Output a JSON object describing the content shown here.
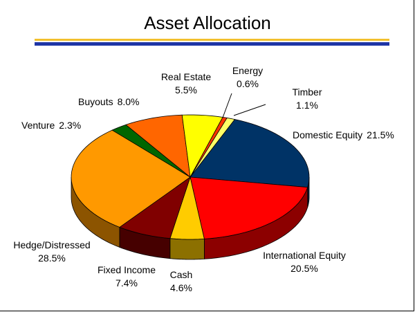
{
  "chart_data": {
    "type": "pie",
    "title": "Asset Allocation",
    "slices": [
      {
        "label": "Domestic Equity",
        "value": 21.5,
        "pct_label": "21.5%",
        "color": "#003366"
      },
      {
        "label": "International Equity",
        "value": 20.5,
        "pct_label": "20.5%",
        "color": "#ff0000"
      },
      {
        "label": "Cash",
        "value": 4.6,
        "pct_label": "4.6%",
        "color": "#ffcc00"
      },
      {
        "label": "Fixed Income",
        "value": 7.4,
        "pct_label": "7.4%",
        "color": "#800000"
      },
      {
        "label": "Hedge/Distressed",
        "value": 28.5,
        "pct_label": "28.5%",
        "color": "#ff9900"
      },
      {
        "label": "Venture",
        "value": 2.3,
        "pct_label": "2.3%",
        "color": "#006600"
      },
      {
        "label": "Buyouts",
        "value": 8.0,
        "pct_label": "8.0%",
        "color": "#ff6600"
      },
      {
        "label": "Real Estate",
        "value": 5.5,
        "pct_label": "5.5%",
        "color": "#ffff00"
      },
      {
        "label": "Energy",
        "value": 0.6,
        "pct_label": "0.6%",
        "color": "#ff3300"
      },
      {
        "label": "Timber",
        "value": 1.1,
        "pct_label": "1.1%",
        "color": "#ffff66"
      }
    ]
  }
}
